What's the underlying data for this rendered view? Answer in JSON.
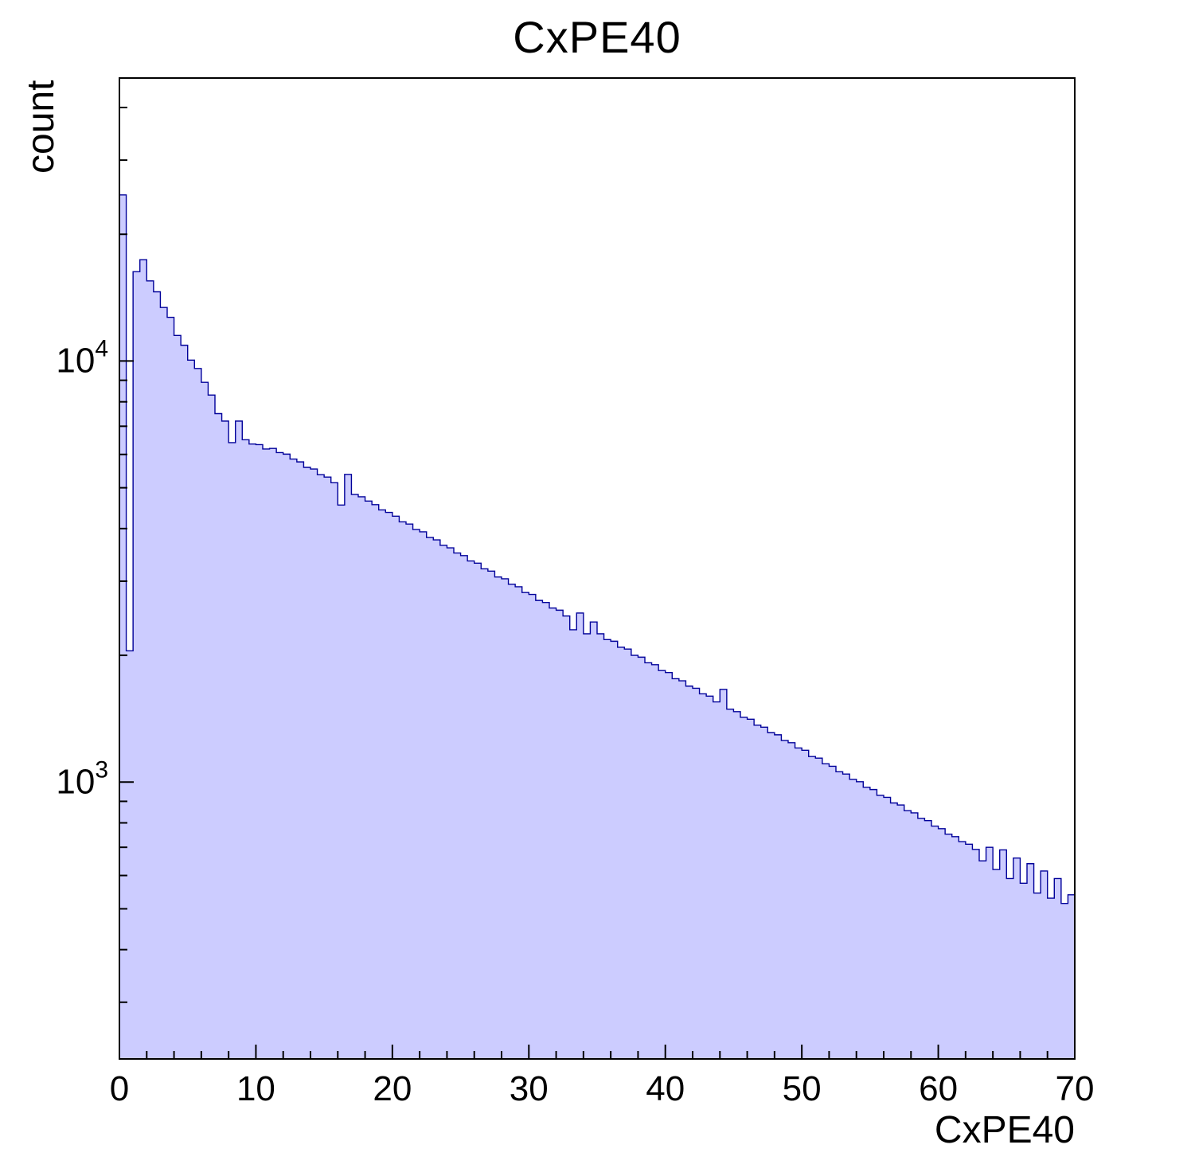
{
  "chart_data": {
    "type": "bar",
    "variant": "step-histogram",
    "title": "CxPE40",
    "xlabel": "CxPE40",
    "ylabel": "count",
    "x_range": [
      0,
      70
    ],
    "y_scale": "log",
    "y_range": [
      220,
      47000
    ],
    "x_major_ticks": [
      0,
      10,
      20,
      30,
      40,
      50,
      60,
      70
    ],
    "x_minor_step": 2,
    "y_labeled_ticks": [
      1000,
      10000
    ],
    "y_labeled_exponents": [
      3,
      4
    ],
    "grid": "off",
    "legend": "none",
    "bin_start": 0,
    "bin_width": 0.5,
    "counts": [
      24800,
      2050,
      16300,
      17400,
      15500,
      14600,
      13400,
      12700,
      11500,
      10900,
      10050,
      9600,
      8900,
      8300,
      7500,
      7200,
      6400,
      7200,
      6500,
      6350,
      6330,
      6180,
      6200,
      6060,
      6010,
      5850,
      5760,
      5590,
      5540,
      5370,
      5300,
      5140,
      4550,
      5380,
      4820,
      4760,
      4650,
      4560,
      4430,
      4370,
      4280,
      4150,
      4100,
      3980,
      3930,
      3810,
      3760,
      3650,
      3600,
      3500,
      3450,
      3350,
      3310,
      3210,
      3170,
      3070,
      3040,
      2950,
      2910,
      2820,
      2790,
      2700,
      2670,
      2590,
      2560,
      2480,
      2300,
      2520,
      2250,
      2400,
      2250,
      2180,
      2160,
      2090,
      2070,
      2000,
      1980,
      1920,
      1900,
      1840,
      1820,
      1760,
      1740,
      1690,
      1670,
      1620,
      1600,
      1550,
      1660,
      1490,
      1470,
      1425,
      1410,
      1365,
      1350,
      1310,
      1295,
      1255,
      1240,
      1205,
      1190,
      1150,
      1140,
      1105,
      1090,
      1058,
      1045,
      1015,
      1002,
      972,
      960,
      930,
      920,
      892,
      882,
      855,
      845,
      820,
      810,
      786,
      775,
      752,
      742,
      722,
      712,
      692,
      650,
      700,
      620,
      690,
      590,
      660,
      575,
      640,
      545,
      615,
      530,
      590,
      515,
      540
    ],
    "fill_color": "#ccccff",
    "line_color": "#000099",
    "frame_color": "#000000"
  }
}
